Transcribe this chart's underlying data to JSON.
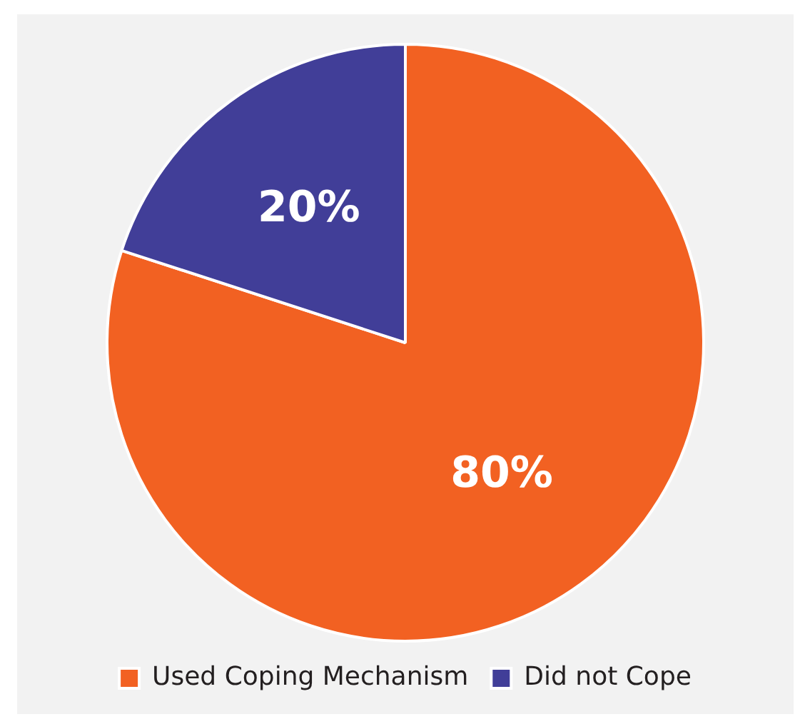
{
  "chart_data": {
    "type": "pie",
    "categories": [
      "Used Coping Mechanism",
      "Did not Cope"
    ],
    "values": [
      80,
      20
    ],
    "colors": [
      "#f26122",
      "#413e98"
    ],
    "value_labels": [
      "80%",
      "20%"
    ],
    "legend": "bottom"
  }
}
